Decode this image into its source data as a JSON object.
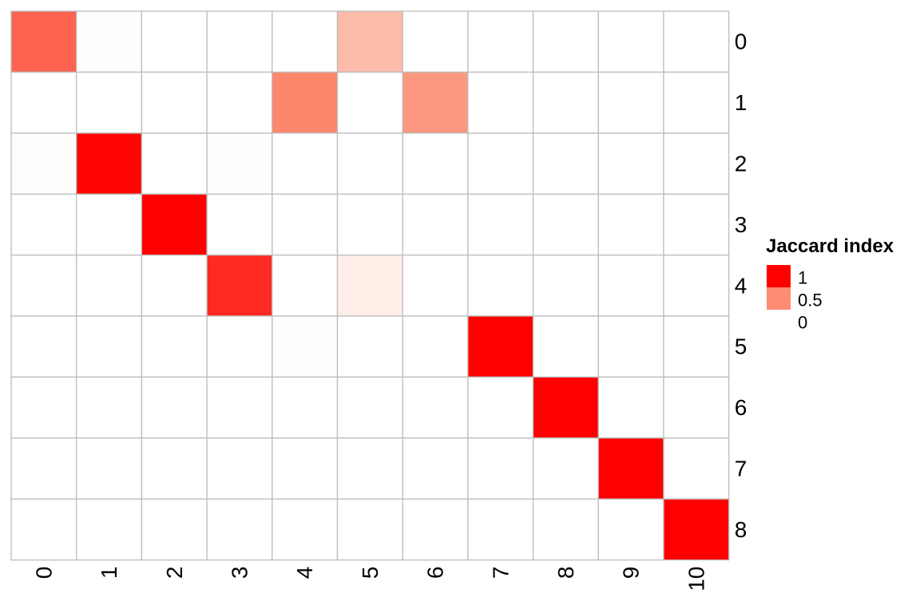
{
  "chart_data": {
    "type": "heatmap",
    "title": "",
    "xlabel": "",
    "ylabel": "",
    "columns": [
      "0",
      "1",
      "2",
      "3",
      "4",
      "5",
      "6",
      "7",
      "8",
      "9",
      "10"
    ],
    "rows": [
      "0",
      "1",
      "2",
      "3",
      "4",
      "5",
      "6",
      "7",
      "8"
    ],
    "values": [
      [
        0.65,
        0.01,
        0,
        0,
        0,
        0.3,
        0,
        0,
        0,
        0,
        0
      ],
      [
        0,
        0,
        0,
        0,
        0.52,
        0,
        0.45,
        0,
        0,
        0,
        0
      ],
      [
        0.01,
        0.98,
        0,
        0.01,
        0,
        0,
        0,
        0,
        0,
        0,
        0
      ],
      [
        0,
        0,
        1.0,
        0,
        0,
        0,
        0,
        0,
        0,
        0,
        0
      ],
      [
        0,
        0,
        0,
        0.85,
        0,
        0.08,
        0,
        0,
        0,
        0,
        0
      ],
      [
        0,
        0,
        0,
        0,
        0.01,
        0,
        0,
        1.0,
        0,
        0,
        0
      ],
      [
        0,
        0,
        0,
        0,
        0,
        0,
        0,
        0,
        1.0,
        0,
        0
      ],
      [
        0,
        0,
        0,
        0,
        0,
        0,
        0,
        0,
        0,
        1.0,
        0
      ],
      [
        0,
        0,
        0,
        0,
        0,
        0,
        0,
        0,
        0,
        0,
        1.0
      ]
    ],
    "color_scale": {
      "low": "#ffffff",
      "mid": "#fc8d72",
      "high": "#ff0000"
    },
    "grid_color": "#bdbdbd",
    "legend": {
      "title": "Jaccard index",
      "position": "right",
      "entries": [
        {
          "label": "1",
          "value": 1.0
        },
        {
          "label": "0.5",
          "value": 0.5
        },
        {
          "label": "0",
          "value": 0.0
        }
      ]
    }
  }
}
